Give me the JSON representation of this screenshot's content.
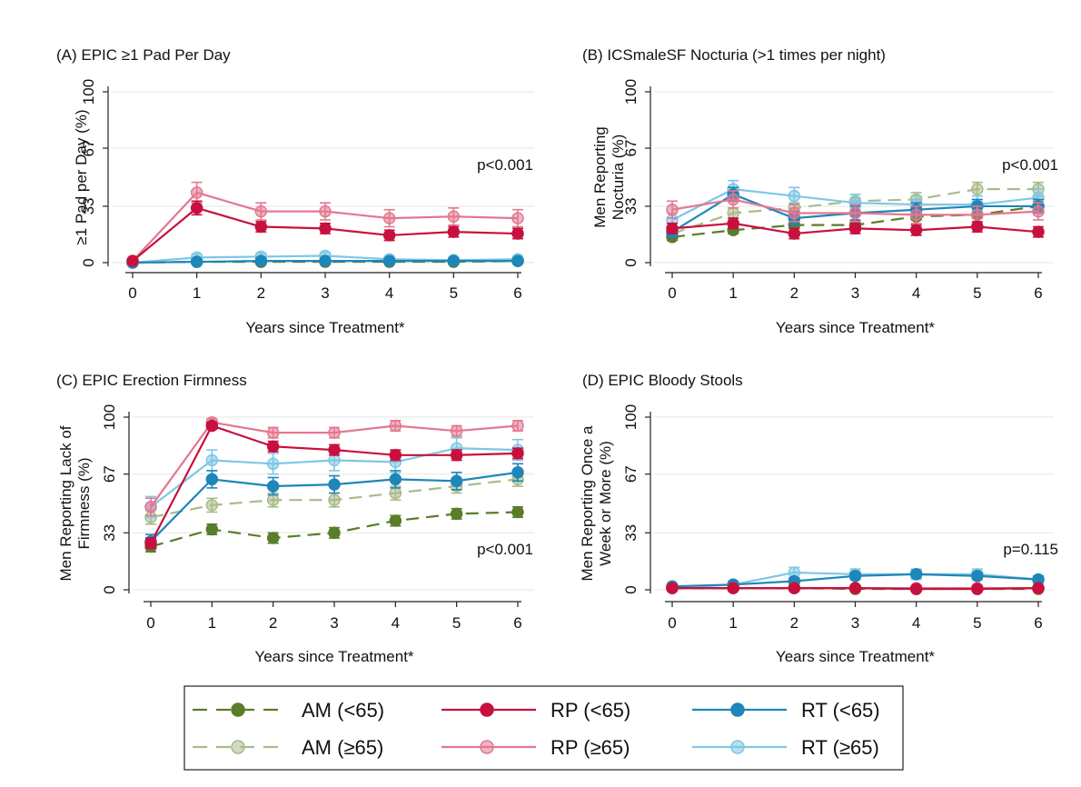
{
  "colors": {
    "AM_lt65": "#5a7d2a",
    "AM_ge65": "#a9bb8a",
    "RP_lt65": "#c8103e",
    "RP_ge65": "#e3788f",
    "RT_lt65": "#1e86b9",
    "RT_ge65": "#7ec7e6"
  },
  "legend": [
    {
      "key": "AM_lt65",
      "label": "AM (<65)",
      "dash": true
    },
    {
      "key": "RP_lt65",
      "label": "RP (<65)",
      "dash": false
    },
    {
      "key": "RT_lt65",
      "label": "RT (<65)",
      "dash": false
    },
    {
      "key": "AM_ge65",
      "label": "AM (≥65)",
      "dash": true
    },
    {
      "key": "RP_ge65",
      "label": "RP (≥65)",
      "dash": false
    },
    {
      "key": "RT_ge65",
      "label": "RT (≥65)",
      "dash": false
    }
  ],
  "chart_data": [
    {
      "type": "line",
      "title": "(A) EPIC ≥1 Pad Per Day",
      "xlabel": "Years since Treatment*",
      "ylabel": [
        "≥1 Pad per Day (%)"
      ],
      "annotation": "p<0.001",
      "x": [
        0,
        1,
        2,
        3,
        4,
        5,
        6
      ],
      "yticks": [
        0,
        33,
        67,
        100
      ],
      "ylim": [
        0,
        100
      ],
      "series": [
        {
          "key": "AM_lt65",
          "values": [
            0,
            0.5,
            0.5,
            0.5,
            0.5,
            0.5,
            1
          ],
          "err": [
            0,
            0,
            0,
            0,
            0,
            0,
            0
          ]
        },
        {
          "key": "AM_ge65",
          "values": [
            0,
            0.5,
            0.5,
            1,
            1,
            1,
            1
          ],
          "err": [
            0,
            0,
            0,
            0,
            0,
            0,
            0
          ]
        },
        {
          "key": "RP_lt65",
          "values": [
            1,
            32,
            21,
            20,
            16,
            18,
            17
          ],
          "err": [
            1,
            4,
            3,
            3,
            3,
            3,
            3
          ]
        },
        {
          "key": "RP_ge65",
          "values": [
            1,
            41,
            30,
            30,
            26,
            27,
            26
          ],
          "err": [
            1,
            6,
            5,
            5,
            5,
            5,
            5
          ]
        },
        {
          "key": "RT_lt65",
          "values": [
            0,
            0.5,
            1,
            1,
            1,
            1,
            1
          ],
          "err": [
            0,
            0.5,
            1,
            1,
            1,
            1,
            1
          ]
        },
        {
          "key": "RT_ge65",
          "values": [
            0,
            3,
            3.5,
            4,
            2,
            1.5,
            2
          ],
          "err": [
            0,
            2,
            2,
            2,
            1.5,
            1.5,
            1.5
          ]
        }
      ]
    },
    {
      "type": "line",
      "title": "(B) ICSmaleSF Nocturia (>1 times per night)",
      "xlabel": "Years since Treatment*",
      "ylabel": [
        "Men Reporting",
        "Nocturia (%)"
      ],
      "annotation": "p<0.001",
      "x": [
        0,
        1,
        2,
        3,
        4,
        5,
        6
      ],
      "yticks": [
        0,
        33,
        67,
        100
      ],
      "ylim": [
        0,
        100
      ],
      "series": [
        {
          "key": "AM_lt65",
          "values": [
            15,
            19,
            22,
            22,
            27,
            28,
            33
          ],
          "err": [
            2,
            2,
            2,
            2,
            2,
            2,
            3
          ]
        },
        {
          "key": "AM_ge65",
          "values": [
            17,
            29,
            32,
            36,
            37,
            43,
            43
          ],
          "err": [
            2,
            3,
            3,
            4,
            4,
            4,
            4
          ]
        },
        {
          "key": "RP_lt65",
          "values": [
            20,
            23,
            17,
            20,
            19,
            21,
            18
          ],
          "err": [
            3,
            3,
            3,
            3,
            3,
            3,
            3
          ]
        },
        {
          "key": "RP_ge65",
          "values": [
            31,
            37,
            29,
            29,
            28,
            28,
            30
          ],
          "err": [
            5,
            5,
            5,
            5,
            5,
            5,
            5
          ]
        },
        {
          "key": "RT_lt65",
          "values": [
            18,
            40,
            26,
            29,
            31,
            33,
            33
          ],
          "err": [
            3,
            4,
            4,
            4,
            4,
            4,
            4
          ]
        },
        {
          "key": "RT_ge65",
          "values": [
            25,
            43,
            39,
            35,
            34,
            34,
            38
          ],
          "err": [
            4,
            5,
            5,
            5,
            5,
            5,
            5
          ]
        }
      ]
    },
    {
      "type": "line",
      "title": "(C) EPIC Erection Firmness",
      "xlabel": "Years since Treatment*",
      "ylabel": [
        "Men Reporting Lack of",
        "Firmness (%)"
      ],
      "annotation": "p<0.001",
      "x": [
        0,
        1,
        2,
        3,
        4,
        5,
        6
      ],
      "yticks": [
        0,
        33,
        67,
        100
      ],
      "ylim": [
        0,
        100
      ],
      "series": [
        {
          "key": "AM_lt65",
          "values": [
            25,
            35,
            30,
            33,
            40,
            44,
            45
          ],
          "err": [
            3,
            3,
            3,
            3,
            3,
            3,
            3
          ]
        },
        {
          "key": "AM_ge65",
          "values": [
            42,
            49,
            52,
            52,
            56,
            60,
            64
          ],
          "err": [
            4,
            4,
            4,
            4,
            4,
            4,
            4
          ]
        },
        {
          "key": "RP_lt65",
          "values": [
            27,
            95,
            83,
            81,
            78,
            78,
            79
          ],
          "err": [
            3,
            2,
            3,
            3,
            3,
            3,
            3
          ]
        },
        {
          "key": "RP_ge65",
          "values": [
            48,
            97,
            91,
            91,
            95,
            92,
            95
          ],
          "err": [
            5,
            2,
            3,
            3,
            3,
            3,
            3
          ]
        },
        {
          "key": "RT_lt65",
          "values": [
            28,
            64,
            60,
            61,
            64,
            63,
            68
          ],
          "err": [
            4,
            5,
            5,
            5,
            5,
            5,
            5
          ]
        },
        {
          "key": "RT_ge65",
          "values": [
            48,
            75,
            73,
            75,
            74,
            82,
            81
          ],
          "err": [
            6,
            6,
            6,
            6,
            6,
            6,
            6
          ]
        }
      ]
    },
    {
      "type": "line",
      "title": "(D) EPIC Bloody Stools",
      "xlabel": "Years since Treatment*",
      "ylabel": [
        "Men Reporting Once a",
        "Week or More (%)"
      ],
      "annotation": "p=0.115",
      "x": [
        0,
        1,
        2,
        3,
        4,
        5,
        6
      ],
      "yticks": [
        0,
        33,
        67,
        100
      ],
      "ylim": [
        0,
        100
      ],
      "series": [
        {
          "key": "AM_lt65",
          "values": [
            1,
            1,
            1,
            0.5,
            0.5,
            0.5,
            0.5
          ],
          "err": [
            0,
            0,
            0,
            0,
            0,
            0,
            0
          ]
        },
        {
          "key": "AM_ge65",
          "values": [
            1,
            1,
            1,
            1,
            1,
            1,
            1
          ],
          "err": [
            0,
            0,
            0,
            0,
            0,
            0,
            0
          ]
        },
        {
          "key": "RP_lt65",
          "values": [
            1,
            1,
            1,
            1,
            0.5,
            0.5,
            1
          ],
          "err": [
            0.5,
            0.5,
            0.5,
            0.5,
            0.5,
            0.5,
            0.5
          ]
        },
        {
          "key": "RP_ge65",
          "values": [
            1,
            1,
            1,
            1,
            1,
            1,
            1
          ],
          "err": [
            1,
            1,
            1,
            1,
            1,
            1,
            1
          ]
        },
        {
          "key": "RT_lt65",
          "values": [
            2,
            3,
            5,
            8,
            9,
            8,
            6
          ],
          "err": [
            1,
            1,
            2,
            2,
            2,
            2,
            2
          ]
        },
        {
          "key": "RT_ge65",
          "values": [
            1,
            3,
            10,
            9,
            9,
            9,
            6
          ],
          "err": [
            1,
            2,
            3,
            3,
            3,
            3,
            2
          ]
        }
      ]
    }
  ]
}
